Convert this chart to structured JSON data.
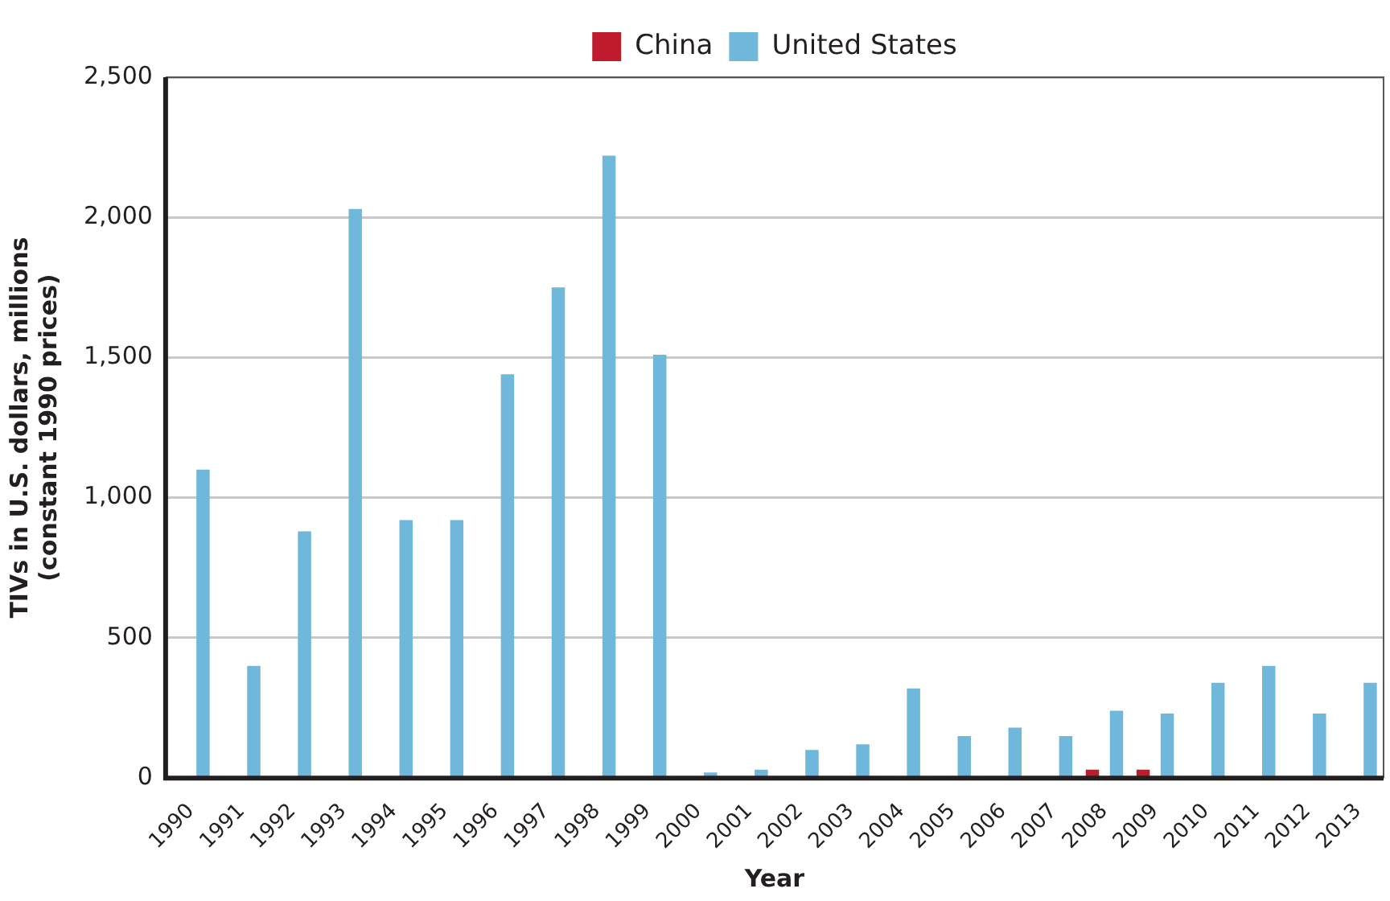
{
  "chart_data": {
    "type": "bar",
    "xlabel": "Year",
    "ylabel": "TIVs in U.S. dollars, millions\n(constant 1990 prices)",
    "categories": [
      "1990",
      "1991",
      "1992",
      "1993",
      "1994",
      "1995",
      "1996",
      "1997",
      "1998",
      "1999",
      "2000",
      "2001",
      "2002",
      "2003",
      "2004",
      "2005",
      "2006",
      "2007",
      "2008",
      "2009",
      "2010",
      "2011",
      "2012",
      "2013"
    ],
    "series": [
      {
        "name": "China",
        "color": "#c01b2c",
        "values": [
          0,
          0,
          0,
          0,
          0,
          0,
          0,
          0,
          0,
          0,
          0,
          0,
          0,
          0,
          0,
          0,
          0,
          0,
          30,
          30,
          0,
          0,
          0,
          0
        ]
      },
      {
        "name": "United States",
        "color": "#6fb8dc",
        "values": [
          1100,
          400,
          880,
          2030,
          920,
          920,
          1440,
          1750,
          2220,
          1510,
          20,
          30,
          100,
          120,
          320,
          150,
          180,
          150,
          240,
          230,
          340,
          400,
          230,
          340
        ]
      }
    ],
    "ylim": [
      0,
      2500
    ],
    "yticks": [
      {
        "value": 0,
        "label": "0"
      },
      {
        "value": 500,
        "label": "500"
      },
      {
        "value": 1000,
        "label": "1,000"
      },
      {
        "value": 1500,
        "label": "1,500"
      },
      {
        "value": 2000,
        "label": "2,000"
      },
      {
        "value": 2500,
        "label": "2,500"
      }
    ],
    "grid": "y",
    "legend": "top"
  }
}
